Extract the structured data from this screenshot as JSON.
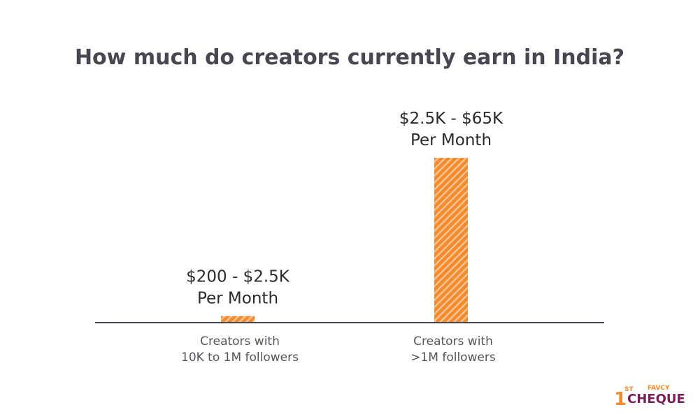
{
  "chart_data": {
    "type": "bar",
    "title": "How much do creators currently earn in India?",
    "categories": [
      "Creators with\n10K to 1M followers",
      "Creators with\n>1M followers"
    ],
    "series": [
      {
        "values": [
          1.35,
          33.75
        ]
      }
    ],
    "data_labels": [
      "$200 - $2.5K\nPer Month",
      "$2.5K - $65K\nPer Month"
    ],
    "xlabel": "",
    "ylabel": "",
    "grid": false,
    "legend": "none",
    "bar_color": "#f28a2e",
    "bar_stripe_color": "#fbc493"
  },
  "logo": {
    "top_small": "FAVCY",
    "sup": "ST",
    "number": "1",
    "word": "CHEQUE",
    "accent_color": "#f28a2e",
    "secondary_color": "#7a1f5c"
  },
  "colors": {
    "axis": "#474751",
    "title": "#474751"
  }
}
